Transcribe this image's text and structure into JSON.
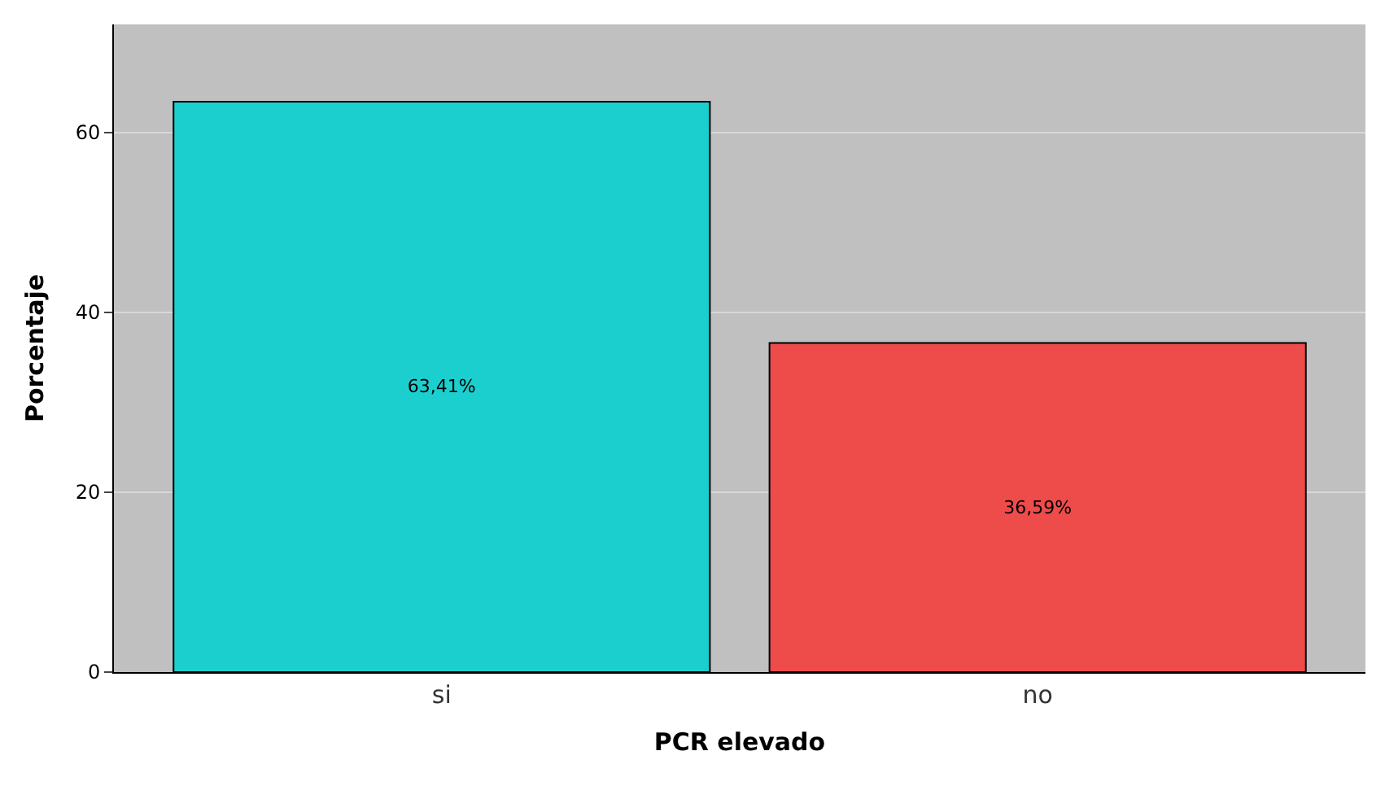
{
  "chart_data": {
    "type": "bar",
    "xlabel": "PCR elevado",
    "ylabel": "Porcentaje",
    "categories": [
      "si",
      "no"
    ],
    "values": [
      63.41,
      36.59
    ],
    "value_labels": [
      "63,41%",
      "36,59%"
    ],
    "colors": [
      "#1ccfcf",
      "#ee4b4b"
    ],
    "ylim": [
      0,
      72
    ],
    "yticks": [
      0,
      20,
      40,
      60
    ],
    "grid": "y",
    "legend": false
  }
}
